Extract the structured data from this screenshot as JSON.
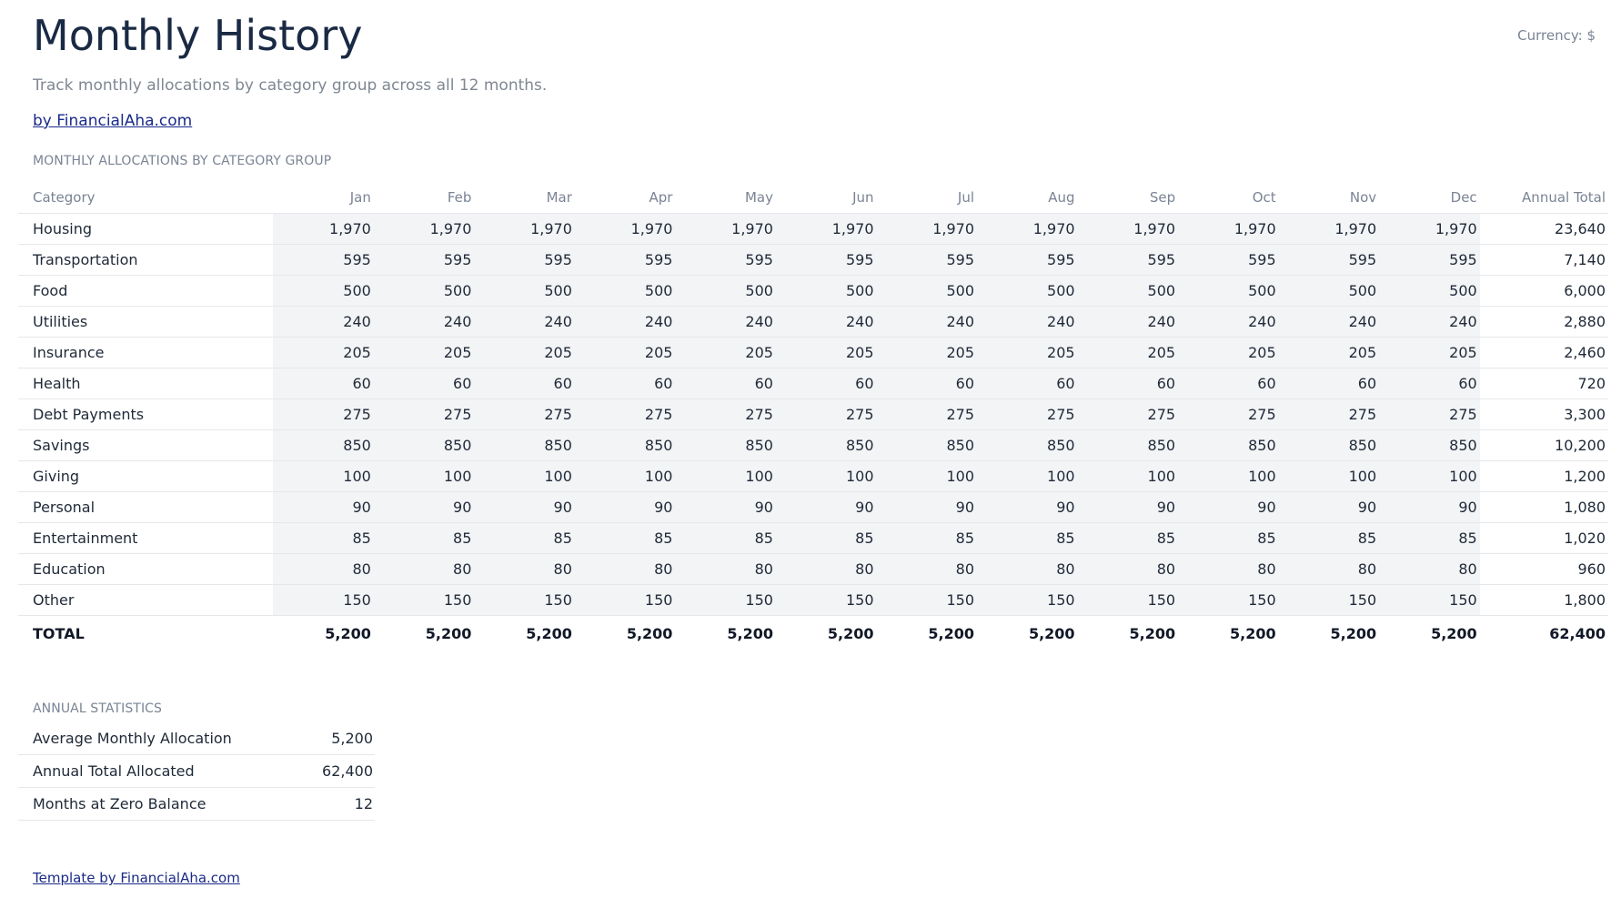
{
  "header": {
    "title": "Monthly History",
    "currency": "Currency: $",
    "subtitle": "Track monthly allocations by category group across all 12 months.",
    "by_link": "by FinancialAha.com"
  },
  "allocations": {
    "section_label": "MONTHLY ALLOCATIONS BY CATEGORY GROUP",
    "columns": [
      "Category",
      "Jan",
      "Feb",
      "Mar",
      "Apr",
      "May",
      "Jun",
      "Jul",
      "Aug",
      "Sep",
      "Oct",
      "Nov",
      "Dec",
      "Annual Total"
    ],
    "rows": [
      {
        "category": "Housing",
        "months": [
          "1,970",
          "1,970",
          "1,970",
          "1,970",
          "1,970",
          "1,970",
          "1,970",
          "1,970",
          "1,970",
          "1,970",
          "1,970",
          "1,970"
        ],
        "annual": "23,640"
      },
      {
        "category": "Transportation",
        "months": [
          "595",
          "595",
          "595",
          "595",
          "595",
          "595",
          "595",
          "595",
          "595",
          "595",
          "595",
          "595"
        ],
        "annual": "7,140"
      },
      {
        "category": "Food",
        "months": [
          "500",
          "500",
          "500",
          "500",
          "500",
          "500",
          "500",
          "500",
          "500",
          "500",
          "500",
          "500"
        ],
        "annual": "6,000"
      },
      {
        "category": "Utilities",
        "months": [
          "240",
          "240",
          "240",
          "240",
          "240",
          "240",
          "240",
          "240",
          "240",
          "240",
          "240",
          "240"
        ],
        "annual": "2,880"
      },
      {
        "category": "Insurance",
        "months": [
          "205",
          "205",
          "205",
          "205",
          "205",
          "205",
          "205",
          "205",
          "205",
          "205",
          "205",
          "205"
        ],
        "annual": "2,460"
      },
      {
        "category": "Health",
        "months": [
          "60",
          "60",
          "60",
          "60",
          "60",
          "60",
          "60",
          "60",
          "60",
          "60",
          "60",
          "60"
        ],
        "annual": "720"
      },
      {
        "category": "Debt Payments",
        "months": [
          "275",
          "275",
          "275",
          "275",
          "275",
          "275",
          "275",
          "275",
          "275",
          "275",
          "275",
          "275"
        ],
        "annual": "3,300"
      },
      {
        "category": "Savings",
        "months": [
          "850",
          "850",
          "850",
          "850",
          "850",
          "850",
          "850",
          "850",
          "850",
          "850",
          "850",
          "850"
        ],
        "annual": "10,200"
      },
      {
        "category": "Giving",
        "months": [
          "100",
          "100",
          "100",
          "100",
          "100",
          "100",
          "100",
          "100",
          "100",
          "100",
          "100",
          "100"
        ],
        "annual": "1,200"
      },
      {
        "category": "Personal",
        "months": [
          "90",
          "90",
          "90",
          "90",
          "90",
          "90",
          "90",
          "90",
          "90",
          "90",
          "90",
          "90"
        ],
        "annual": "1,080"
      },
      {
        "category": "Entertainment",
        "months": [
          "85",
          "85",
          "85",
          "85",
          "85",
          "85",
          "85",
          "85",
          "85",
          "85",
          "85",
          "85"
        ],
        "annual": "1,020"
      },
      {
        "category": "Education",
        "months": [
          "80",
          "80",
          "80",
          "80",
          "80",
          "80",
          "80",
          "80",
          "80",
          "80",
          "80",
          "80"
        ],
        "annual": "960"
      },
      {
        "category": "Other",
        "months": [
          "150",
          "150",
          "150",
          "150",
          "150",
          "150",
          "150",
          "150",
          "150",
          "150",
          "150",
          "150"
        ],
        "annual": "1,800"
      }
    ],
    "total": {
      "label": "TOTAL",
      "months": [
        "5,200",
        "5,200",
        "5,200",
        "5,200",
        "5,200",
        "5,200",
        "5,200",
        "5,200",
        "5,200",
        "5,200",
        "5,200",
        "5,200"
      ],
      "annual": "62,400"
    }
  },
  "statistics": {
    "section_label": "ANNUAL STATISTICS",
    "rows": [
      {
        "label": "Average Monthly Allocation",
        "value": "5,200"
      },
      {
        "label": "Annual Total Allocated",
        "value": "62,400"
      },
      {
        "label": "Months at Zero Balance",
        "value": "12"
      }
    ]
  },
  "footer": {
    "link": "Template by FinancialAha.com"
  }
}
